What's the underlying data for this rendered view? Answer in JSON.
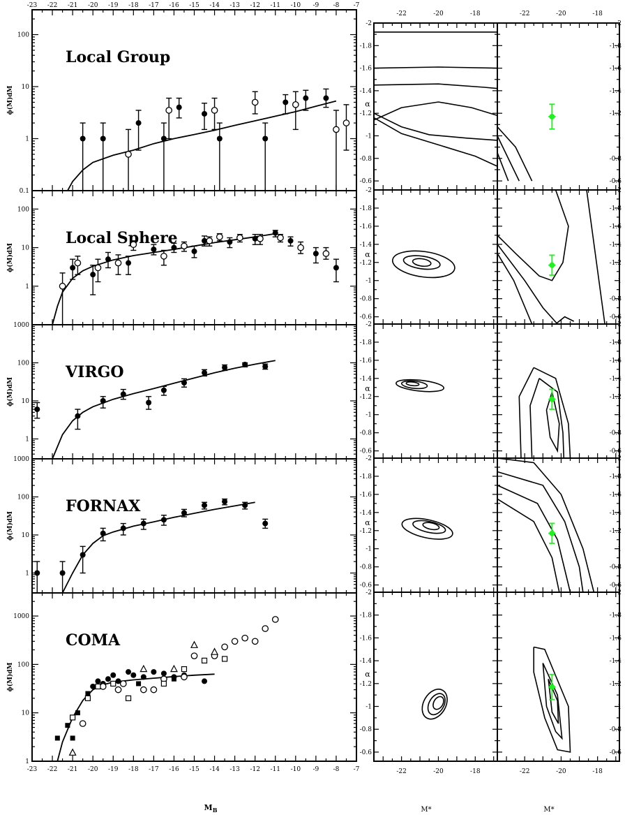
{
  "figure": {
    "lf_ylabel": "ɸ(M)dM",
    "lf_xlabel": "M_B",
    "contour_ylabel": "α",
    "contour_xlabel": "M*"
  },
  "lf_axes": {
    "xlim": [
      -23,
      -7
    ],
    "xticks_major": [
      -23,
      -22,
      -21,
      -20,
      -19,
      -18,
      -17,
      -16,
      -15,
      -14,
      -13,
      -12,
      -11,
      -10,
      -9,
      -8,
      -7
    ],
    "xtick_labels": [
      "-23",
      "-22",
      "-21",
      "-20",
      "-19",
      "-18",
      "-17",
      "-16",
      "-15",
      "-14",
      "-13",
      "-12",
      "-11",
      "-10",
      "-9",
      "-8",
      "-7"
    ]
  },
  "contour_axes": {
    "xlim": [
      -23.5,
      -16.8
    ],
    "xticks": [
      -22,
      -20,
      -18
    ],
    "xtick_labels": [
      "-22",
      "-20",
      "-18"
    ],
    "ylim": [
      -2,
      -0.52
    ],
    "yticks": [
      -2,
      -1.8,
      -1.6,
      -1.4,
      -1.2,
      -1,
      -0.8,
      -0.6
    ],
    "ytick_labels": [
      "-2",
      "-1.8",
      "-1.6",
      "-1.4",
      "-1.2",
      "-1",
      "-0.8",
      "-0.6"
    ]
  },
  "reference_point": {
    "mstar": -20.5,
    "alpha": -1.17,
    "alpha_err": 0.11,
    "mstar_err": 0.2,
    "color": "#22ee22"
  },
  "chart_data": [
    {
      "type": "scatter",
      "panel": "Local Group",
      "title": "Local Group",
      "log_y": true,
      "ylim": [
        0.1,
        300
      ],
      "yticks": [
        0.1,
        1,
        10,
        100
      ],
      "ytick_labels": [
        "0.1",
        "1",
        "10",
        "100"
      ],
      "series": [
        {
          "marker": "filled-circle",
          "points": [
            [
              -20.5,
              1,
              0.01,
              2
            ],
            [
              -19.5,
              1,
              0.01,
              2
            ],
            [
              -17.75,
              2,
              0.6,
              3.5
            ],
            [
              -16.5,
              1,
              0.01,
              2
            ],
            [
              -15.75,
              4,
              2.5,
              6
            ],
            [
              -14.5,
              3,
              1.5,
              4.8
            ],
            [
              -13.75,
              1,
              0.01,
              2
            ],
            [
              -11.5,
              1,
              0.01,
              2
            ],
            [
              -10.5,
              5,
              3,
              7
            ],
            [
              -9.5,
              6,
              3.5,
              8.5
            ],
            [
              -8.5,
              6,
              4,
              9
            ]
          ]
        },
        {
          "marker": "open-circle",
          "points": [
            [
              -18.25,
              0.5,
              0.01,
              1.5
            ],
            [
              -16.25,
              3.5,
              1,
              6
            ],
            [
              -14,
              3.5,
              1.5,
              6
            ],
            [
              -12,
              5,
              3,
              8
            ],
            [
              -10,
              4.5,
              1.5,
              8
            ],
            [
              -8,
              1.5,
              0.01,
              3.5
            ],
            [
              -7.5,
              2,
              0.6,
              4.5
            ]
          ]
        }
      ],
      "curve": [
        [
          -21.25,
          0.1
        ],
        [
          -21,
          0.15
        ],
        [
          -20.5,
          0.25
        ],
        [
          -20,
          0.35
        ],
        [
          -19,
          0.48
        ],
        [
          -18,
          0.6
        ],
        [
          -17,
          0.8
        ],
        [
          -16,
          1
        ],
        [
          -15,
          1.2
        ],
        [
          -14,
          1.45
        ],
        [
          -13,
          1.8
        ],
        [
          -12,
          2.2
        ],
        [
          -11,
          2.7
        ],
        [
          -10,
          3.3
        ],
        [
          -9,
          4.2
        ],
        [
          -8,
          5.3
        ]
      ]
    },
    {
      "type": "scatter",
      "panel": "Local Sphere",
      "title": "Local Sphere",
      "log_y": true,
      "ylim": [
        0.1,
        300
      ],
      "yticks": [
        1,
        10,
        100
      ],
      "ytick_labels": [
        "1",
        "10",
        "100"
      ],
      "series": [
        {
          "marker": "filled-circle",
          "points": [
            [
              -21,
              3,
              1.5,
              5
            ],
            [
              -20,
              2,
              0.6,
              3.5
            ],
            [
              -19.25,
              5,
              3,
              7.5
            ],
            [
              -18.25,
              4,
              2,
              6
            ],
            [
              -17,
              9,
              6.5,
              12
            ],
            [
              -16,
              10,
              7.5,
              13
            ],
            [
              -15,
              8,
              5.5,
              11
            ],
            [
              -14.5,
              15,
              11,
              20
            ],
            [
              -13.25,
              14,
              10,
              18
            ],
            [
              -12,
              17,
              12,
              22
            ],
            [
              -11,
              24,
              19,
              28
            ],
            [
              -10.25,
              15,
              11,
              19
            ],
            [
              -9,
              7,
              4,
              10
            ],
            [
              -8,
              3,
              1.3,
              5
            ]
          ]
        },
        {
          "marker": "open-circle",
          "points": [
            [
              -21.5,
              1,
              0.01,
              2.2
            ],
            [
              -20.75,
              4,
              2,
              6
            ],
            [
              -19.75,
              3,
              1.3,
              5
            ],
            [
              -18.75,
              4,
              2,
              6.5
            ],
            [
              -18,
              12,
              8.5,
              15
            ],
            [
              -16.5,
              6,
              3.5,
              8.5
            ],
            [
              -15.5,
              11,
              8,
              14
            ],
            [
              -14.25,
              15,
              11,
              19
            ],
            [
              -13.75,
              19,
              15,
              23
            ],
            [
              -12.75,
              18,
              14,
              22
            ],
            [
              -11.75,
              17,
              12,
              22
            ],
            [
              -10.75,
              18,
              14,
              22
            ],
            [
              -9.75,
              10,
              7,
              14
            ],
            [
              -8.5,
              7,
              5,
              10
            ]
          ]
        }
      ],
      "curve": [
        [
          -22,
          0.1
        ],
        [
          -21.75,
          0.3
        ],
        [
          -21.5,
          0.7
        ],
        [
          -21,
          1.6
        ],
        [
          -20.5,
          2.5
        ],
        [
          -20,
          3.3
        ],
        [
          -19,
          4.8
        ],
        [
          -18,
          6.2
        ],
        [
          -17,
          7.5
        ],
        [
          -16,
          9
        ],
        [
          -15,
          11
        ],
        [
          -14,
          13.5
        ],
        [
          -13,
          16
        ],
        [
          -12,
          19
        ],
        [
          -11,
          23
        ]
      ]
    },
    {
      "type": "scatter",
      "panel": "VIRGO",
      "title": "VIRGO",
      "log_y": true,
      "ylim": [
        0.3,
        1000
      ],
      "yticks": [
        1,
        10,
        100,
        1000
      ],
      "ytick_labels": [
        "1",
        "10",
        "100",
        "1000"
      ],
      "series": [
        {
          "marker": "filled-circle",
          "points": [
            [
              -22.75,
              6,
              3.5,
              9
            ],
            [
              -20.75,
              4,
              1.8,
              6
            ],
            [
              -19.5,
              10,
              6.5,
              13
            ],
            [
              -18.5,
              15,
              11,
              20
            ],
            [
              -17.25,
              9,
              6,
              13
            ],
            [
              -16.5,
              19,
              14,
              24
            ],
            [
              -15.5,
              30,
              23,
              38
            ],
            [
              -14.5,
              55,
              45,
              66
            ],
            [
              -13.5,
              75,
              63,
              88
            ],
            [
              -12.5,
              90,
              78,
              100
            ],
            [
              -11.5,
              80,
              68,
              93
            ]
          ]
        }
      ],
      "curve": [
        [
          -22,
          0.3
        ],
        [
          -21.5,
          1.3
        ],
        [
          -21,
          3
        ],
        [
          -20.5,
          5
        ],
        [
          -20,
          7
        ],
        [
          -19,
          11
        ],
        [
          -18,
          15.5
        ],
        [
          -17,
          21
        ],
        [
          -16,
          29
        ],
        [
          -15,
          40
        ],
        [
          -14,
          55
        ],
        [
          -13,
          72
        ],
        [
          -12,
          92
        ],
        [
          -11,
          115
        ]
      ]
    },
    {
      "type": "scatter",
      "panel": "FORNAX",
      "title": "FORNAX",
      "log_y": true,
      "ylim": [
        0.3,
        1000
      ],
      "yticks": [
        1,
        10,
        100,
        1000
      ],
      "ytick_labels": [
        "1",
        "10",
        "100",
        "1000"
      ],
      "series": [
        {
          "marker": "filled-circle",
          "points": [
            [
              -22.75,
              1,
              0.3,
              2
            ],
            [
              -21.5,
              1,
              0.3,
              2
            ],
            [
              -20.5,
              3,
              1,
              5
            ],
            [
              -19.5,
              11,
              7,
              15
            ],
            [
              -18.5,
              15,
              10,
              20
            ],
            [
              -17.5,
              20,
              14,
              26
            ],
            [
              -16.5,
              25,
              18,
              33
            ],
            [
              -15.5,
              38,
              30,
              47
            ],
            [
              -14.5,
              60,
              48,
              72
            ],
            [
              -13.5,
              75,
              62,
              88
            ],
            [
              -12.5,
              60,
              48,
              72
            ],
            [
              -11.5,
              20,
              15,
              26
            ]
          ]
        }
      ],
      "curve": [
        [
          -21.5,
          0.3
        ],
        [
          -21,
          1
        ],
        [
          -20.5,
          3
        ],
        [
          -20,
          6
        ],
        [
          -19.5,
          9.5
        ],
        [
          -19,
          12
        ],
        [
          -18,
          17
        ],
        [
          -17,
          22
        ],
        [
          -16,
          29
        ],
        [
          -15,
          37
        ],
        [
          -14,
          47
        ],
        [
          -13,
          58
        ],
        [
          -12,
          72
        ]
      ]
    },
    {
      "type": "scatter",
      "panel": "COMA",
      "title": "COMA",
      "log_y": true,
      "ylim": [
        1,
        3000
      ],
      "yticks": [
        1,
        10,
        100,
        1000
      ],
      "ytick_labels": [
        "1",
        "10",
        "100",
        "1000"
      ],
      "series": [
        {
          "marker": "filled-circle",
          "points": [
            [
              -21,
              8
            ],
            [
              -20,
              35
            ],
            [
              -19.75,
              45
            ],
            [
              -19.5,
              40
            ],
            [
              -19.25,
              50
            ],
            [
              -19,
              60
            ],
            [
              -18.75,
              45
            ],
            [
              -18.5,
              40
            ],
            [
              -18.25,
              70
            ],
            [
              -18,
              60
            ],
            [
              -17.5,
              55
            ],
            [
              -17,
              70
            ],
            [
              -16.5,
              65
            ],
            [
              -16,
              55
            ],
            [
              -15.5,
              60
            ],
            [
              -14.5,
              45
            ]
          ]
        },
        {
          "marker": "filled-square",
          "points": [
            [
              -21.75,
              3
            ],
            [
              -21.25,
              5.5
            ],
            [
              -21,
              3
            ],
            [
              -20.75,
              10
            ],
            [
              -20.25,
              25
            ],
            [
              -17.75,
              40
            ],
            [
              -16,
              50
            ]
          ]
        },
        {
          "marker": "open-circle",
          "points": [
            [
              -20.5,
              6
            ],
            [
              -19.5,
              35
            ],
            [
              -18.75,
              30
            ],
            [
              -18.5,
              40
            ],
            [
              -17.5,
              30
            ],
            [
              -17,
              30
            ],
            [
              -16.5,
              50
            ],
            [
              -15.5,
              55
            ],
            [
              -15,
              150
            ],
            [
              -14,
              150
            ],
            [
              -13.5,
              230
            ],
            [
              -13,
              300
            ],
            [
              -12.5,
              350
            ],
            [
              -12,
              300
            ],
            [
              -11.5,
              550
            ],
            [
              -11,
              850
            ]
          ]
        },
        {
          "marker": "open-square",
          "points": [
            [
              -21,
              8
            ],
            [
              -20.25,
              20
            ],
            [
              -19.75,
              35
            ],
            [
              -19,
              40
            ],
            [
              -18.25,
              20
            ],
            [
              -16.5,
              40
            ],
            [
              -15.5,
              80
            ],
            [
              -14.5,
              120
            ],
            [
              -13.5,
              130
            ]
          ]
        },
        {
          "marker": "open-triangle",
          "points": [
            [
              -21,
              1.5
            ],
            [
              -17.5,
              80
            ],
            [
              -16,
              80
            ],
            [
              -15,
              250
            ],
            [
              -14,
              180
            ]
          ]
        }
      ],
      "curve": [
        [
          -21.75,
          1
        ],
        [
          -21.5,
          2.5
        ],
        [
          -21,
          8
        ],
        [
          -20.5,
          18
        ],
        [
          -20,
          30
        ],
        [
          -19.5,
          38
        ],
        [
          -19,
          43
        ],
        [
          -18,
          48
        ],
        [
          -17,
          52
        ],
        [
          -16,
          56
        ],
        [
          -15,
          60
        ],
        [
          -14,
          63
        ]
      ]
    }
  ]
}
